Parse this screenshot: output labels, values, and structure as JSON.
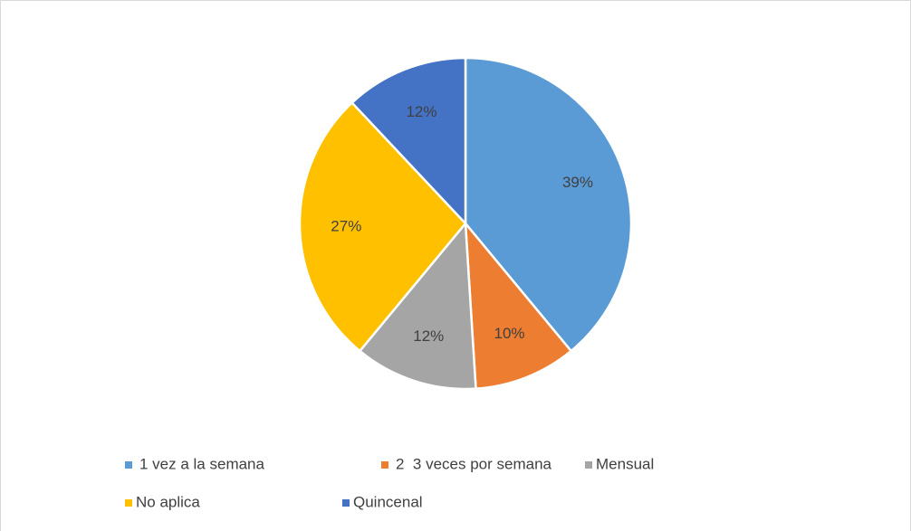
{
  "chart_data": {
    "type": "pie",
    "categories": [
      "1 vez a la semana",
      "2  3 veces por semana",
      "Mensual",
      "No aplica",
      "Quincenal"
    ],
    "values": [
      39,
      10,
      12,
      27,
      12
    ],
    "value_labels": [
      "39%",
      "10%",
      "12%",
      "27%",
      "12%"
    ],
    "colors": [
      "#5b9bd5",
      "#ed7d31",
      "#a5a5a5",
      "#ffc000",
      "#4472c4"
    ],
    "legend": "bottom"
  }
}
